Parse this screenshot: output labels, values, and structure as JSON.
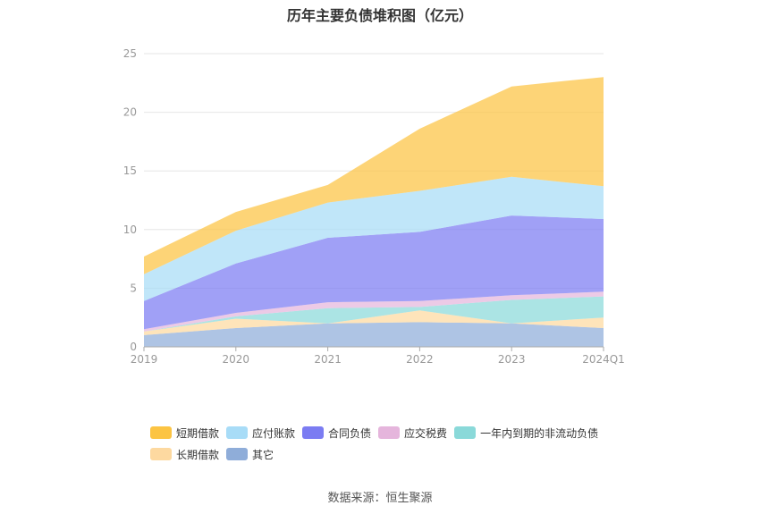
{
  "chart_data": {
    "type": "area",
    "stacked": true,
    "title": "历年主要负债堆积图（亿元）",
    "categories": [
      "2019",
      "2020",
      "2021",
      "2022",
      "2023",
      "2024Q1"
    ],
    "ylim": [
      0,
      25
    ],
    "yticks": [
      0,
      5,
      10,
      15,
      20,
      25
    ],
    "grid": true,
    "legend_position": "bottom",
    "series": [
      {
        "name": "其它",
        "color": "#8fadd9",
        "values": [
          1.0,
          1.6,
          2.0,
          2.1,
          2.0,
          1.6
        ]
      },
      {
        "name": "长期借款",
        "color": "#fdd9a0",
        "values": [
          0.3,
          0.8,
          0.0,
          1.0,
          0.0,
          0.9
        ]
      },
      {
        "name": "一年内到期的非流动负债",
        "color": "#8ad9d9",
        "values": [
          0.0,
          0.2,
          1.3,
          0.3,
          2.0,
          1.8
        ]
      },
      {
        "name": "应交税费",
        "color": "#e5b5dc",
        "values": [
          0.2,
          0.3,
          0.5,
          0.5,
          0.4,
          0.4
        ]
      },
      {
        "name": "合同负债",
        "color": "#7b7cf2",
        "values": [
          2.4,
          4.2,
          5.5,
          5.9,
          6.8,
          6.2
        ]
      },
      {
        "name": "应付账款",
        "color": "#a8dcf7",
        "values": [
          2.3,
          2.8,
          3.0,
          3.5,
          3.3,
          2.8
        ]
      },
      {
        "name": "短期借款",
        "color": "#fcc443",
        "values": [
          1.5,
          1.6,
          1.5,
          5.3,
          7.7,
          9.3
        ]
      }
    ],
    "legend_order": [
      "短期借款",
      "应付账款",
      "合同负债",
      "应交税费",
      "一年内到期的非流动负债",
      "长期借款",
      "其它"
    ]
  },
  "source": "数据来源：恒生聚源"
}
